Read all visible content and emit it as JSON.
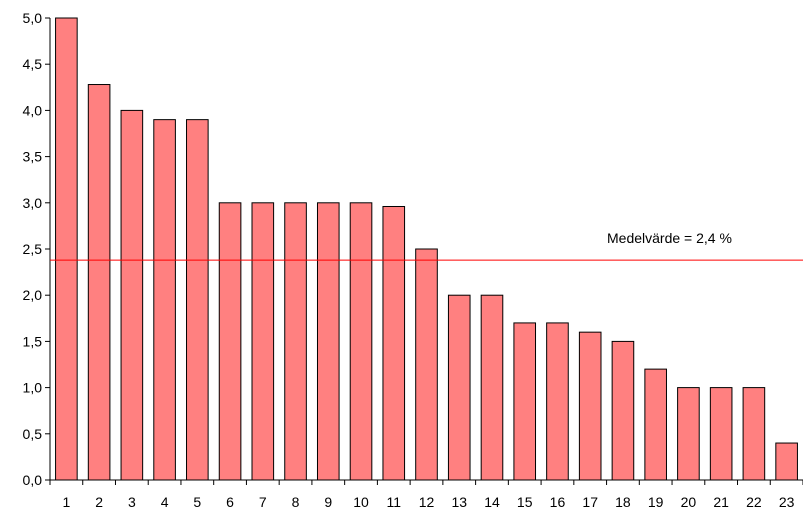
{
  "chart_data": {
    "type": "bar",
    "categories": [
      "1",
      "2",
      "3",
      "4",
      "5",
      "6",
      "7",
      "8",
      "9",
      "10",
      "11",
      "12",
      "13",
      "14",
      "15",
      "16",
      "17",
      "18",
      "19",
      "20",
      "21",
      "22",
      "23"
    ],
    "values": [
      5.0,
      4.28,
      4.0,
      3.9,
      3.9,
      3.0,
      3.0,
      3.0,
      3.0,
      3.0,
      2.96,
      2.5,
      2.0,
      2.0,
      1.7,
      1.7,
      1.6,
      1.5,
      1.2,
      1.0,
      1.0,
      1.0,
      0.4
    ],
    "title": "",
    "xlabel": "",
    "ylabel": "",
    "ylim": [
      0,
      5
    ],
    "yticks": [
      "0,0",
      "0,5",
      "1,0",
      "1,5",
      "2,0",
      "2,5",
      "3,0",
      "3,5",
      "4,0",
      "4,5",
      "5,0"
    ],
    "grid": false,
    "reference_line": {
      "value": 2.38,
      "label": "Medelvärde = 2,4 %"
    },
    "colors": {
      "bar_fill": "#ff8080",
      "bar_stroke": "#000000",
      "reference_line": "#ff0000",
      "axis": "#000000"
    }
  }
}
